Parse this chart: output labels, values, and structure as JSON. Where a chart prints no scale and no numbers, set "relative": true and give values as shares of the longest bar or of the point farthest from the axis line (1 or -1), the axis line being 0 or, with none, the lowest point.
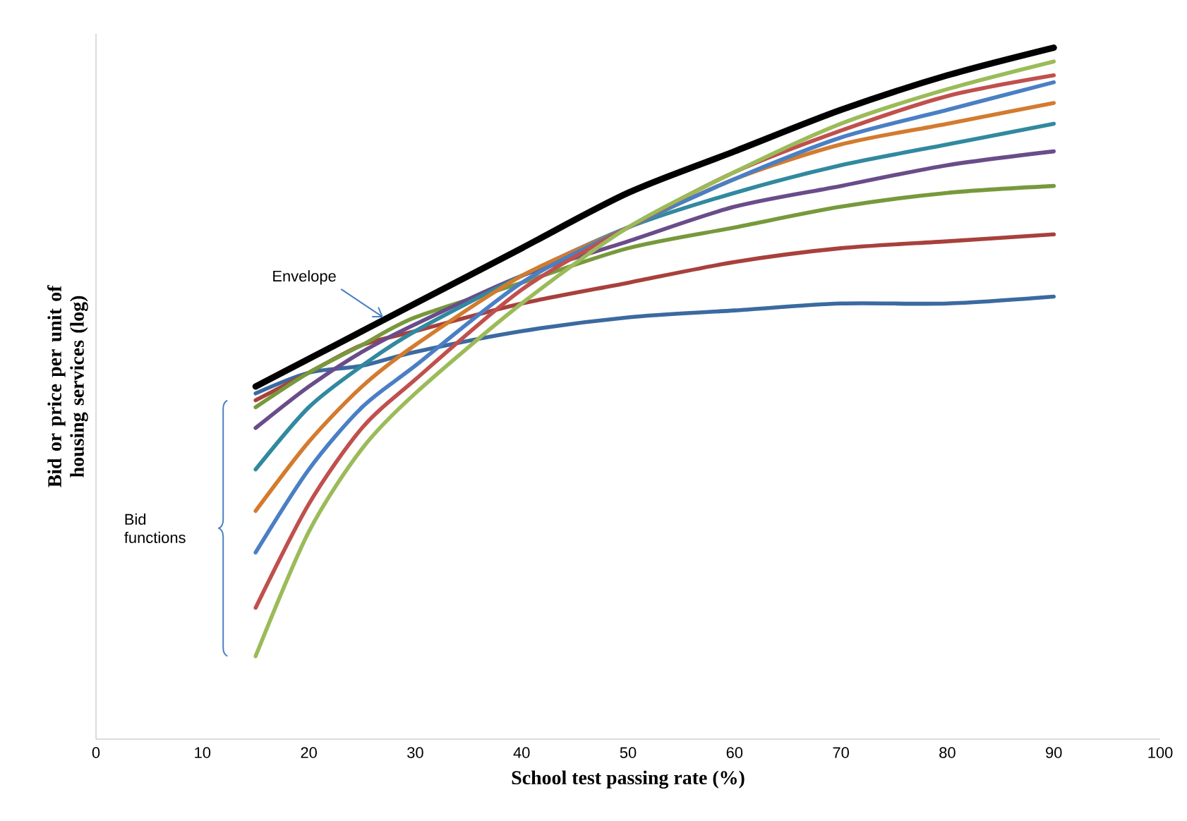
{
  "chart_data": {
    "type": "line",
    "relative": true,
    "xlabel": "School test passing rate (%)",
    "ylabel": "Bid or price per unit of housing services (log)",
    "xlim": [
      0,
      100
    ],
    "xticks": [
      0,
      10,
      20,
      30,
      40,
      50,
      60,
      70,
      80,
      90,
      100
    ],
    "x": [
      15,
      20,
      25,
      30,
      40,
      50,
      60,
      70,
      80,
      90
    ],
    "series": [
      {
        "color": "#3b6aa0",
        "values": [
          0.5,
          0.53,
          0.54,
          0.56,
          0.59,
          0.61,
          0.62,
          0.63,
          0.63,
          0.64
        ]
      },
      {
        "color": "#a8403c",
        "values": [
          0.49,
          0.53,
          0.57,
          0.59,
          0.63,
          0.66,
          0.69,
          0.71,
          0.72,
          0.73
        ]
      },
      {
        "color": "#77993c",
        "values": [
          0.48,
          0.53,
          0.57,
          0.61,
          0.66,
          0.71,
          0.74,
          0.77,
          0.79,
          0.8
        ]
      },
      {
        "color": "#6a4c8a",
        "values": [
          0.45,
          0.51,
          0.56,
          0.6,
          0.67,
          0.72,
          0.77,
          0.8,
          0.83,
          0.85
        ]
      },
      {
        "color": "#31899f",
        "values": [
          0.39,
          0.48,
          0.54,
          0.59,
          0.67,
          0.74,
          0.79,
          0.83,
          0.86,
          0.89
        ]
      },
      {
        "color": "#d37b2e",
        "values": [
          0.33,
          0.43,
          0.51,
          0.57,
          0.67,
          0.74,
          0.81,
          0.86,
          0.89,
          0.92
        ]
      },
      {
        "color": "#4a7fc4",
        "values": [
          0.27,
          0.39,
          0.48,
          0.54,
          0.66,
          0.74,
          0.81,
          0.87,
          0.91,
          0.95
        ]
      },
      {
        "color": "#c0504d",
        "values": [
          0.19,
          0.34,
          0.45,
          0.52,
          0.65,
          0.74,
          0.82,
          0.88,
          0.93,
          0.96
        ]
      },
      {
        "color": "#9bbb59",
        "values": [
          0.12,
          0.3,
          0.42,
          0.5,
          0.63,
          0.74,
          0.82,
          0.89,
          0.94,
          0.98
        ]
      },
      {
        "color": "#000000",
        "values": [
          0.51,
          0.55,
          0.59,
          0.63,
          0.71,
          0.79,
          0.85,
          0.91,
          0.96,
          1.0
        ]
      }
    ],
    "annotations": [
      {
        "text": "Envelope",
        "x": 27,
        "y": 0.61
      },
      "Bid functions"
    ]
  }
}
